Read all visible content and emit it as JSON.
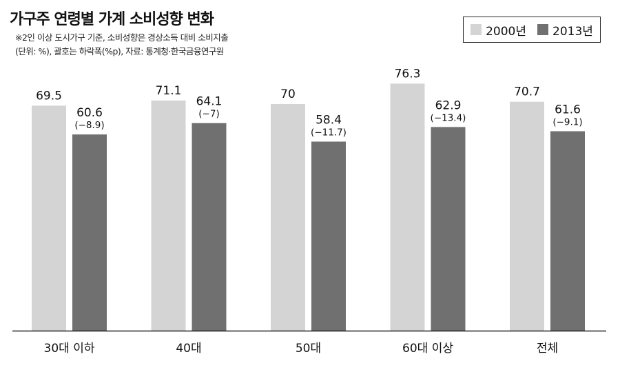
{
  "header": {
    "title": "가구주 연령별 가계 소비성향 변화",
    "note1": "※2인 이상 도시가구 기준, 소비성향은 경상소득 대비 소비지출",
    "note2": "(단위: %), 괄호는 하락폭(%p), 자료: 통계청·한국금융연구원"
  },
  "colors": {
    "s2000": "#d4d4d4",
    "s2013": "#707070",
    "axis": "#222222"
  },
  "chart_data": {
    "type": "bar",
    "title": "가구주 연령별 가계 소비성향 변화",
    "ylabel": "",
    "xlabel": "",
    "ylim": [
      0,
      100
    ],
    "grid": false,
    "legend": "top-right",
    "categories": [
      "30대 이하",
      "40대",
      "50대",
      "60대 이상",
      "전체"
    ],
    "series": [
      {
        "name": "2000년",
        "values": [
          69.5,
          71.1,
          70,
          76.3,
          70.7
        ],
        "labels": [
          "69.5",
          "71.1",
          "70",
          "76.3",
          "70.7"
        ]
      },
      {
        "name": "2013년",
        "values": [
          60.6,
          64.1,
          58.4,
          62.9,
          61.6
        ],
        "labels": [
          "60.6",
          "64.1",
          "58.4",
          "62.9",
          "61.6"
        ]
      }
    ],
    "annotations": [
      "(−8.9)",
      "(−7)",
      "(−11.7)",
      "(−13.4)",
      "(−9.1)"
    ]
  }
}
